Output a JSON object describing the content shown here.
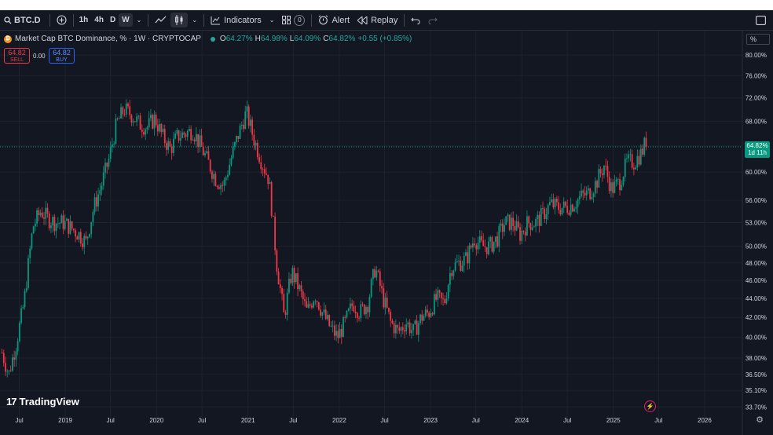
{
  "toolbar": {
    "symbol": "BTC.D",
    "timeframes": [
      "1h",
      "4h",
      "D",
      "W"
    ],
    "active_timeframe": "W",
    "indicators_label": "Indicators",
    "templates_count": "0",
    "alert_label": "Alert",
    "replay_label": "Replay"
  },
  "legend": {
    "title": "Market Cap BTC Dominance, % · 1W · CRYPTOCAP",
    "open_k": "O",
    "open_v": "64.27%",
    "high_k": "H",
    "high_v": "64.98%",
    "low_k": "L",
    "low_v": "64.09%",
    "close_k": "C",
    "close_v": "64.82%",
    "change": "+0.55 (+0.85%)"
  },
  "trade": {
    "sell_price": "64.82",
    "sell_label": "SELL",
    "spread": "0.00",
    "buy_price": "64.82",
    "buy_label": "BUY"
  },
  "axis": {
    "unit_label": "%",
    "price_ticks": [
      "80.00%",
      "76.00%",
      "72.00%",
      "68.00%",
      "64.00%",
      "60.00%",
      "56.00%",
      "53.00%",
      "50.00%",
      "48.00%",
      "46.00%",
      "44.00%",
      "42.00%",
      "40.00%",
      "38.00%",
      "36.50%",
      "35.10%",
      "33.70%"
    ],
    "time_ticks": [
      "Jul",
      "2019",
      "Jul",
      "2020",
      "Jul",
      "2021",
      "Jul",
      "2022",
      "Jul",
      "2023",
      "Jul",
      "2024",
      "Jul",
      "2025",
      "Jul",
      "2026"
    ]
  },
  "last_price": {
    "value": "64.82%",
    "countdown": "1d 11h"
  },
  "branding": {
    "logo_text": "TradingView"
  },
  "colors": {
    "up": "#089981",
    "down": "#f23645",
    "background": "#131722",
    "grid": "#1e222d"
  },
  "chart_data": {
    "type": "candlestick",
    "title": "Market Cap BTC Dominance, % · 1W · CRYPTOCAP",
    "log_scale": true,
    "y_range": [
      33.2,
      83.0
    ],
    "x_range": [
      "2018-04-15",
      "2026-06-01"
    ],
    "grid": true,
    "series": [
      {
        "date": "2018-04-23",
        "close": 38.5
      },
      {
        "date": "2018-05-20",
        "close": 36.5
      },
      {
        "date": "2018-06-20",
        "close": 39.5
      },
      {
        "date": "2018-07-20",
        "close": 43.5
      },
      {
        "date": "2018-08-25",
        "close": 52.5
      },
      {
        "date": "2018-09-25",
        "close": 54.5
      },
      {
        "date": "2018-10-25",
        "close": 53.5
      },
      {
        "date": "2018-11-25",
        "close": 53.0
      },
      {
        "date": "2018-12-25",
        "close": 53.0
      },
      {
        "date": "2019-01-25",
        "close": 52.3
      },
      {
        "date": "2019-02-25",
        "close": 51.5
      },
      {
        "date": "2019-03-25",
        "close": 50.5
      },
      {
        "date": "2019-04-25",
        "close": 55.0
      },
      {
        "date": "2019-05-25",
        "close": 58.0
      },
      {
        "date": "2019-06-25",
        "close": 62.0
      },
      {
        "date": "2019-07-25",
        "close": 67.5
      },
      {
        "date": "2019-08-25",
        "close": 70.0
      },
      {
        "date": "2019-09-25",
        "close": 69.0
      },
      {
        "date": "2019-10-25",
        "close": 67.5
      },
      {
        "date": "2019-11-25",
        "close": 67.0
      },
      {
        "date": "2019-12-25",
        "close": 68.5
      },
      {
        "date": "2020-01-25",
        "close": 65.5
      },
      {
        "date": "2020-02-25",
        "close": 63.5
      },
      {
        "date": "2020-03-25",
        "close": 65.5
      },
      {
        "date": "2020-04-25",
        "close": 66.0
      },
      {
        "date": "2020-05-25",
        "close": 66.5
      },
      {
        "date": "2020-06-25",
        "close": 64.0
      },
      {
        "date": "2020-07-25",
        "close": 61.5
      },
      {
        "date": "2020-08-25",
        "close": 59.0
      },
      {
        "date": "2020-09-25",
        "close": 58.0
      },
      {
        "date": "2020-10-25",
        "close": 62.0
      },
      {
        "date": "2020-11-25",
        "close": 66.0
      },
      {
        "date": "2020-12-25",
        "close": 69.5
      },
      {
        "date": "2021-01-25",
        "close": 65.0
      },
      {
        "date": "2021-02-25",
        "close": 61.5
      },
      {
        "date": "2021-03-25",
        "close": 59.0
      },
      {
        "date": "2021-04-25",
        "close": 48.0
      },
      {
        "date": "2021-05-25",
        "close": 42.0
      },
      {
        "date": "2021-06-25",
        "close": 47.0
      },
      {
        "date": "2021-07-25",
        "close": 45.0
      },
      {
        "date": "2021-08-25",
        "close": 42.5
      },
      {
        "date": "2021-09-25",
        "close": 44.5
      },
      {
        "date": "2021-10-25",
        "close": 42.5
      },
      {
        "date": "2021-11-25",
        "close": 41.0
      },
      {
        "date": "2021-12-25",
        "close": 40.0
      },
      {
        "date": "2022-01-25",
        "close": 41.5
      },
      {
        "date": "2022-02-25",
        "close": 43.5
      },
      {
        "date": "2022-03-25",
        "close": 42.5
      },
      {
        "date": "2022-04-25",
        "close": 43.5
      },
      {
        "date": "2022-05-25",
        "close": 47.5
      },
      {
        "date": "2022-06-25",
        "close": 44.0
      },
      {
        "date": "2022-07-25",
        "close": 41.5
      },
      {
        "date": "2022-08-25",
        "close": 40.5
      },
      {
        "date": "2022-09-25",
        "close": 41.5
      },
      {
        "date": "2022-10-25",
        "close": 40.5
      },
      {
        "date": "2022-11-25",
        "close": 42.0
      },
      {
        "date": "2022-12-25",
        "close": 42.5
      },
      {
        "date": "2023-01-25",
        "close": 44.0
      },
      {
        "date": "2023-02-25",
        "close": 43.5
      },
      {
        "date": "2023-03-25",
        "close": 47.5
      },
      {
        "date": "2023-04-25",
        "close": 48.0
      },
      {
        "date": "2023-05-25",
        "close": 48.5
      },
      {
        "date": "2023-06-25",
        "close": 51.0
      },
      {
        "date": "2023-07-25",
        "close": 50.0
      },
      {
        "date": "2023-08-25",
        "close": 50.0
      },
      {
        "date": "2023-09-25",
        "close": 51.0
      },
      {
        "date": "2023-10-25",
        "close": 53.0
      },
      {
        "date": "2023-11-25",
        "close": 53.0
      },
      {
        "date": "2023-12-25",
        "close": 51.5
      },
      {
        "date": "2024-01-25",
        "close": 53.0
      },
      {
        "date": "2024-02-25",
        "close": 53.0
      },
      {
        "date": "2024-03-25",
        "close": 54.0
      },
      {
        "date": "2024-04-25",
        "close": 55.5
      },
      {
        "date": "2024-05-25",
        "close": 55.0
      },
      {
        "date": "2024-06-25",
        "close": 55.0
      },
      {
        "date": "2024-07-25",
        "close": 55.5
      },
      {
        "date": "2024-08-25",
        "close": 56.5
      },
      {
        "date": "2024-09-25",
        "close": 57.0
      },
      {
        "date": "2024-10-25",
        "close": 58.5
      },
      {
        "date": "2024-11-25",
        "close": 61.0
      },
      {
        "date": "2024-12-25",
        "close": 57.5
      },
      {
        "date": "2025-01-25",
        "close": 58.5
      },
      {
        "date": "2025-02-25",
        "close": 61.5
      },
      {
        "date": "2025-03-25",
        "close": 61.5
      },
      {
        "date": "2025-04-25",
        "close": 63.0
      },
      {
        "date": "2025-05-12",
        "close": 64.82
      }
    ]
  }
}
